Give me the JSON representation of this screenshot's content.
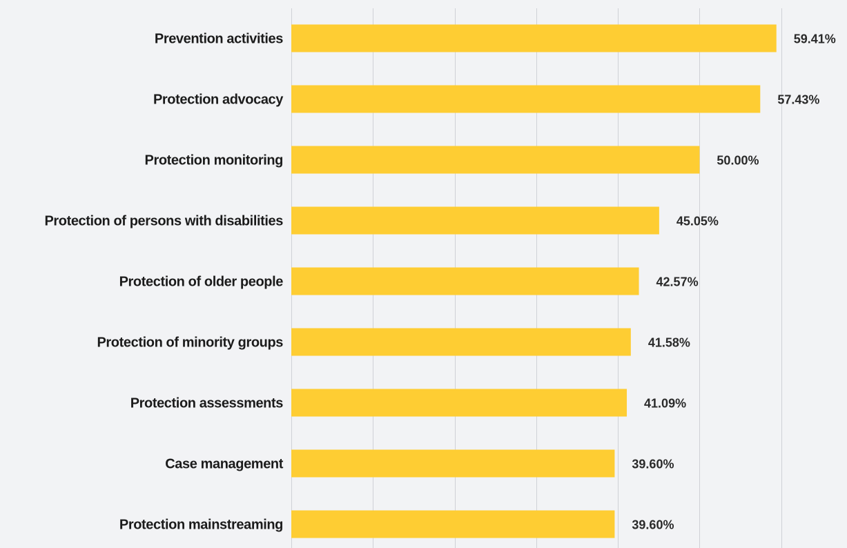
{
  "chart_data": {
    "type": "bar",
    "orientation": "horizontal",
    "title": "",
    "xlabel": "",
    "ylabel": "",
    "categories": [
      "Prevention activities",
      "Protection advocacy",
      "Protection monitoring",
      "Protection of persons with disabilities",
      "Protection of older people",
      "Protection of minority groups",
      "Protection assessments",
      "Case management",
      "Protection mainstreaming"
    ],
    "values": [
      59.41,
      57.43,
      50.0,
      45.05,
      42.57,
      41.58,
      41.09,
      39.6,
      39.6
    ],
    "value_labels": [
      "59.41%",
      "57.43%",
      "50.00%",
      "45.05%",
      "42.57%",
      "41.58%",
      "41.09%",
      "39.60%",
      "39.60%"
    ],
    "xlim": [
      0,
      70
    ],
    "gridlines": [
      0,
      10,
      20,
      30,
      40,
      50,
      60
    ],
    "grid": true,
    "legend": "none",
    "bar_color": "#fecd33",
    "background_color": "#f2f3f5",
    "grid_color": "#cfd1d6"
  }
}
